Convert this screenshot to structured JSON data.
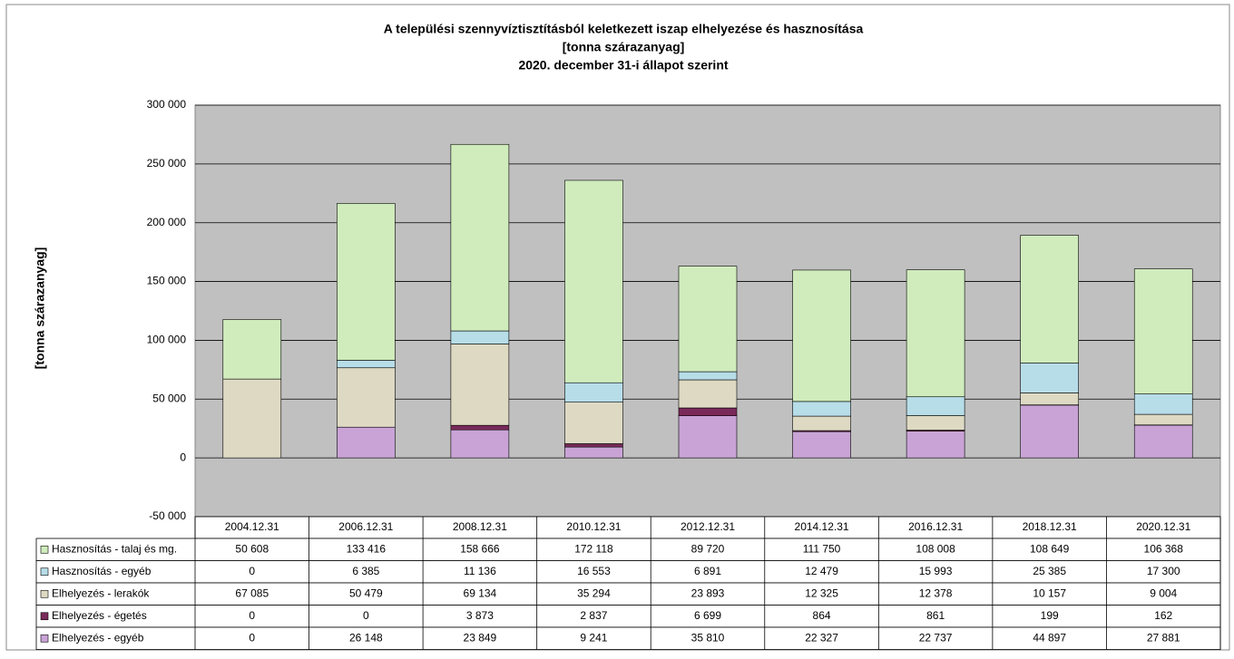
{
  "chart_data": {
    "type": "stacked_bar",
    "title": [
      "A települési szennyvíztisztításból keletkezett iszap elhelyezése és hasznosítása",
      "[tonna szárazanyag]",
      "2020. december 31-i állapot szerint"
    ],
    "y_label": "[tonna szárazanyag]",
    "categories": [
      "2004.12.31",
      "2006.12.31",
      "2008.12.31",
      "2010.12.31",
      "2012.12.31",
      "2014.12.31",
      "2016.12.31",
      "2018.12.31",
      "2020.12.31"
    ],
    "series": [
      {
        "name": "Hasznosítás - talaj és mg.",
        "color": "#d0ecbc",
        "values": [
          50608,
          133416,
          158666,
          172118,
          89720,
          111750,
          108008,
          108649,
          106368
        ],
        "value_labels": [
          "50 608",
          "133 416",
          "158 666",
          "172 118",
          "89 720",
          "111 750",
          "108 008",
          "108 649",
          "106 368"
        ]
      },
      {
        "name": "Hasznosítás - egyéb",
        "color": "#b7dde8",
        "values": [
          0,
          6385,
          11136,
          16553,
          6891,
          12479,
          15993,
          25385,
          17300
        ],
        "value_labels": [
          "0",
          "6 385",
          "11 136",
          "16 553",
          "6 891",
          "12 479",
          "15 993",
          "25 385",
          "17 300"
        ]
      },
      {
        "name": "Elhelyezés - lerakók",
        "color": "#ddd9c3",
        "values": [
          67085,
          50479,
          69134,
          35294,
          23893,
          12325,
          12378,
          10157,
          9004
        ],
        "value_labels": [
          "67 085",
          "50 479",
          "69 134",
          "35 294",
          "23 893",
          "12 325",
          "12 378",
          "10 157",
          "9 004"
        ]
      },
      {
        "name": "Elhelyezés - égetés",
        "color": "#7a2a5a",
        "values": [
          0,
          0,
          3873,
          2837,
          6699,
          864,
          861,
          199,
          162
        ],
        "value_labels": [
          "0",
          "0",
          "3 873",
          "2 837",
          "6 699",
          "864",
          "861",
          "199",
          "162"
        ]
      },
      {
        "name": "Elhelyezés - egyéb",
        "color": "#c9a3d6",
        "values": [
          0,
          26148,
          23849,
          9241,
          35810,
          22327,
          22737,
          44897,
          27881
        ],
        "value_labels": [
          "0",
          "26 148",
          "23 849",
          "9 241",
          "35 810",
          "22 327",
          "22 737",
          "44 897",
          "27 881"
        ]
      }
    ],
    "ylim": [
      -50000,
      300000
    ],
    "yticks": [
      {
        "value": -50000,
        "label": "-50 000"
      },
      0,
      {
        "value": 50000,
        "label": "50 000"
      },
      {
        "value": 100000,
        "label": "100 000"
      },
      {
        "value": 150000,
        "label": "150 000"
      },
      {
        "value": 200000,
        "label": "200 000"
      },
      {
        "value": 250000,
        "label": "250 000"
      },
      {
        "value": 300000,
        "label": "300 000"
      }
    ],
    "grid": true,
    "plot_background": "#c0c0c0"
  }
}
